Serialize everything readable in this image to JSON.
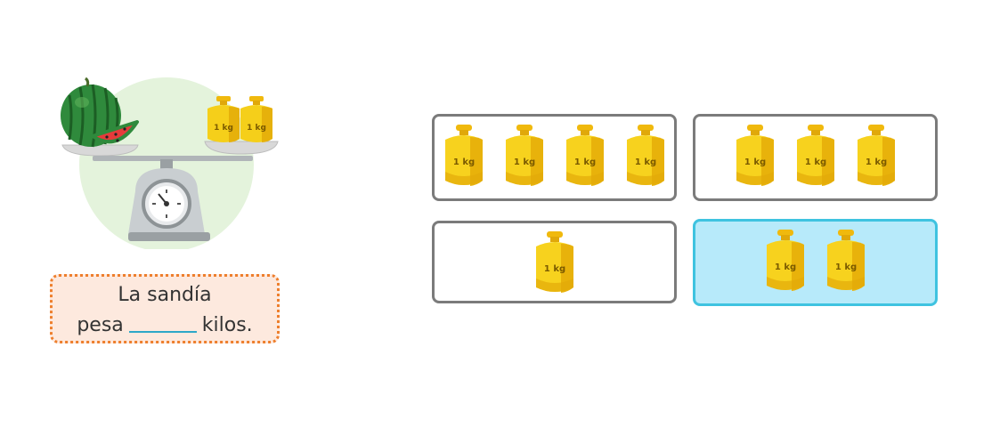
{
  "question": {
    "sentence_line1": "La sandía",
    "sentence_pre_blank": "pesa",
    "sentence_post_blank": "kilos."
  },
  "scale": {
    "weight_label": "1 kg",
    "weights_on_scale": 2
  },
  "options": [
    {
      "id": "option-4-weights",
      "count": 4,
      "weight_label": "1 kg",
      "selected": false
    },
    {
      "id": "option-3-weights",
      "count": 3,
      "weight_label": "1 kg",
      "selected": false
    },
    {
      "id": "option-1-weight",
      "count": 1,
      "weight_label": "1 kg",
      "selected": false
    },
    {
      "id": "option-2-weights",
      "count": 2,
      "weight_label": "1 kg",
      "selected": true
    }
  ],
  "colors": {
    "option_border": "#7b7b7b",
    "selected_border": "#3fc3e0",
    "selected_fill": "#b7eafa",
    "sentence_border": "#ee7f2d",
    "sentence_fill": "#fde9de",
    "blank_line": "#2ea7c8",
    "weight_gold": "#f2c40f"
  },
  "icons": {
    "weight": "kilogram-weight-icon",
    "watermelon": "watermelon-icon",
    "scale": "balance-scale-icon"
  }
}
